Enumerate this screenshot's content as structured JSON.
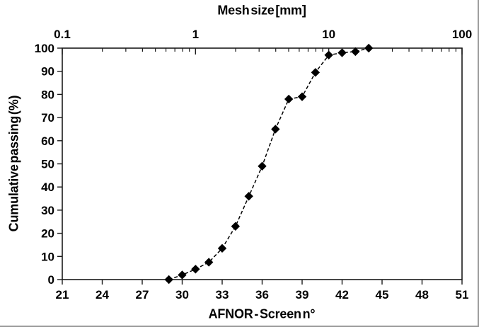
{
  "chart_data": {
    "type": "scatter",
    "title": "",
    "series": [
      {
        "name": "Cumulative passing",
        "marker": "diamond",
        "line_style": "dashed",
        "color": "#000000",
        "points": [
          [
            29,
            0
          ],
          [
            30,
            2
          ],
          [
            31,
            4.5
          ],
          [
            32,
            7.5
          ],
          [
            33,
            13.5
          ],
          [
            34,
            23
          ],
          [
            35,
            36
          ],
          [
            36,
            49
          ],
          [
            37,
            65
          ],
          [
            38,
            78
          ],
          [
            39,
            79
          ],
          [
            40,
            89.5
          ],
          [
            41,
            97
          ],
          [
            42,
            98
          ],
          [
            43,
            98.5
          ],
          [
            44,
            100
          ]
        ]
      }
    ],
    "x_axis": {
      "label": "AFNOR - Screen n°",
      "min": 21,
      "max": 51,
      "ticks": [
        21,
        24,
        27,
        30,
        33,
        36,
        39,
        42,
        45,
        48,
        51
      ]
    },
    "y_axis": {
      "label": "Cumulative passing (%)",
      "min": 0,
      "max": 100,
      "ticks": [
        0,
        10,
        20,
        30,
        40,
        50,
        60,
        70,
        80,
        90,
        100
      ]
    },
    "top_axis": {
      "label": "Mesh size [mm]",
      "scale": "log",
      "min": 0.1,
      "max": 100,
      "tick_values": [
        0.1,
        1,
        10,
        100
      ],
      "tick_labels": [
        "0.1",
        "1",
        "10",
        "100"
      ]
    },
    "axis_color": "#1a1a1a",
    "text_color": "#000000",
    "grid": false,
    "legend": false
  }
}
